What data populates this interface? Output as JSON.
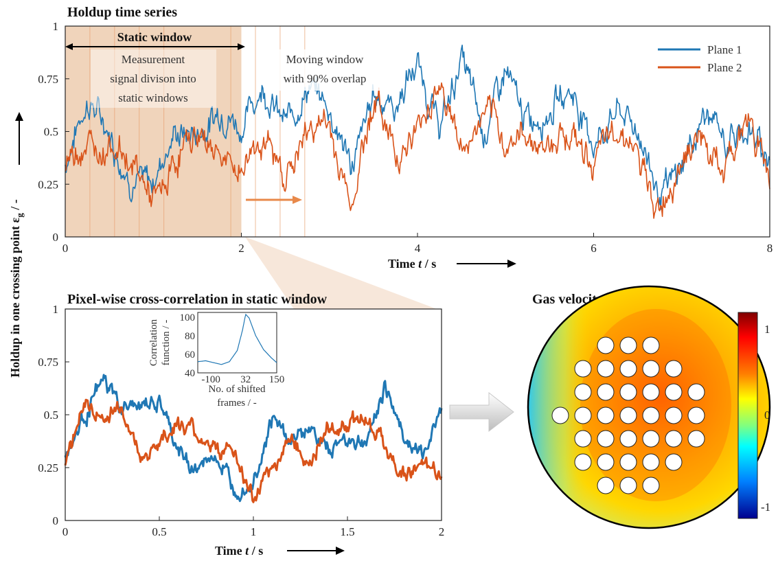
{
  "titles": {
    "top": "Holdup time series",
    "bottom_left": "Pixel-wise cross-correlation in static window",
    "bottom_right": "Gas velocity distribution"
  },
  "ylabel": {
    "main": "Holdup in one crossing point ε",
    "sub": "g",
    "unit": " / -"
  },
  "xlabel": {
    "prefix": "Time ",
    "var": "t",
    "unit": " / s"
  },
  "annotations": {
    "static_window": "Static window",
    "division": [
      "Measurement",
      "signal divison into",
      "static windows"
    ],
    "moving": [
      "Moving window",
      "with 90% overlap"
    ]
  },
  "legend": [
    "Plane 1",
    "Plane 2"
  ],
  "colors": {
    "plane1": "#1f77b4",
    "plane2": "#d95319",
    "window": "#f0d4bb"
  },
  "chart_data": [
    {
      "type": "line",
      "title": "Holdup time series",
      "xlabel": "Time t / s",
      "ylabel": "Holdup in one crossing point εg / -",
      "xlim": [
        0,
        8
      ],
      "ylim": [
        0,
        1
      ],
      "x_ticks": [
        "0",
        "2",
        "4",
        "6",
        "8"
      ],
      "y_ticks": [
        "0",
        "0.25",
        "0.5",
        "0.75",
        "1"
      ],
      "static_window": [
        0,
        2
      ],
      "x": [
        0,
        0.25,
        0.5,
        0.75,
        1,
        1.25,
        1.5,
        1.75,
        2,
        2.25,
        2.5,
        2.75,
        3,
        3.25,
        3.5,
        3.75,
        4,
        4.25,
        4.5,
        4.75,
        5,
        5.25,
        5.5,
        5.75,
        6,
        6.25,
        6.5,
        6.75,
        7,
        7.25,
        7.5,
        7.75,
        8
      ],
      "series": [
        {
          "name": "Plane 1",
          "values": [
            0.34,
            0.58,
            0.52,
            0.32,
            0.22,
            0.45,
            0.55,
            0.62,
            0.45,
            0.72,
            0.6,
            0.68,
            0.55,
            0.38,
            0.72,
            0.55,
            0.8,
            0.58,
            0.85,
            0.42,
            0.82,
            0.6,
            0.55,
            0.66,
            0.5,
            0.62,
            0.44,
            0.2,
            0.4,
            0.55,
            0.4,
            0.56,
            0.42
          ]
        },
        {
          "name": "Plane 2",
          "values": [
            0.28,
            0.45,
            0.5,
            0.28,
            0.2,
            0.38,
            0.42,
            0.46,
            0.3,
            0.42,
            0.36,
            0.46,
            0.5,
            0.22,
            0.6,
            0.42,
            0.55,
            0.66,
            0.45,
            0.6,
            0.38,
            0.55,
            0.42,
            0.45,
            0.42,
            0.48,
            0.36,
            0.18,
            0.32,
            0.48,
            0.35,
            0.5,
            0.34
          ]
        }
      ]
    },
    {
      "type": "line",
      "title": "Pixel-wise cross-correlation in static window",
      "xlabel": "Time t / s",
      "xlim": [
        0,
        2
      ],
      "ylim": [
        0,
        1
      ],
      "x_ticks": [
        "0",
        "0.5",
        "1",
        "1.5",
        "2"
      ],
      "y_ticks": [
        "0",
        "0.25",
        "0.5",
        "0.75",
        "1"
      ],
      "x": [
        0,
        0.1,
        0.2,
        0.3,
        0.4,
        0.5,
        0.6,
        0.7,
        0.8,
        0.9,
        1.0,
        1.1,
        1.2,
        1.3,
        1.4,
        1.5,
        1.6,
        1.7,
        1.8,
        1.9,
        2.0
      ],
      "series": [
        {
          "name": "Plane 1",
          "values": [
            0.3,
            0.45,
            0.6,
            0.48,
            0.52,
            0.58,
            0.38,
            0.3,
            0.35,
            0.15,
            0.15,
            0.42,
            0.32,
            0.42,
            0.35,
            0.45,
            0.42,
            0.68,
            0.4,
            0.25,
            0.5
          ]
        },
        {
          "name": "Plane 2",
          "values": [
            0.22,
            0.5,
            0.45,
            0.58,
            0.35,
            0.42,
            0.45,
            0.35,
            0.28,
            0.3,
            0.12,
            0.3,
            0.45,
            0.25,
            0.38,
            0.4,
            0.48,
            0.38,
            0.28,
            0.3,
            0.2
          ]
        }
      ]
    },
    {
      "type": "line",
      "inset": true,
      "xlabel": [
        "No. of shifted",
        "frames / -"
      ],
      "ylabel": [
        "Correlation",
        "function / -"
      ],
      "xlim": [
        -150,
        150
      ],
      "ylim": [
        40,
        105
      ],
      "x_ticks": [
        "-100",
        "32",
        "150"
      ],
      "y_ticks": [
        "40",
        "60",
        "80",
        "100"
      ],
      "x": [
        -150,
        -120,
        -90,
        -60,
        -30,
        0,
        20,
        32,
        45,
        70,
        100,
        130,
        150
      ],
      "values": [
        52,
        53,
        51,
        49,
        52,
        64,
        86,
        103,
        99,
        80,
        65,
        56,
        51
      ]
    },
    {
      "type": "heatmap",
      "title": "Gas velocity distribution",
      "colorbar_ticks": [
        "1",
        "0",
        "-1"
      ],
      "clim": [
        -1,
        1
      ]
    }
  ]
}
